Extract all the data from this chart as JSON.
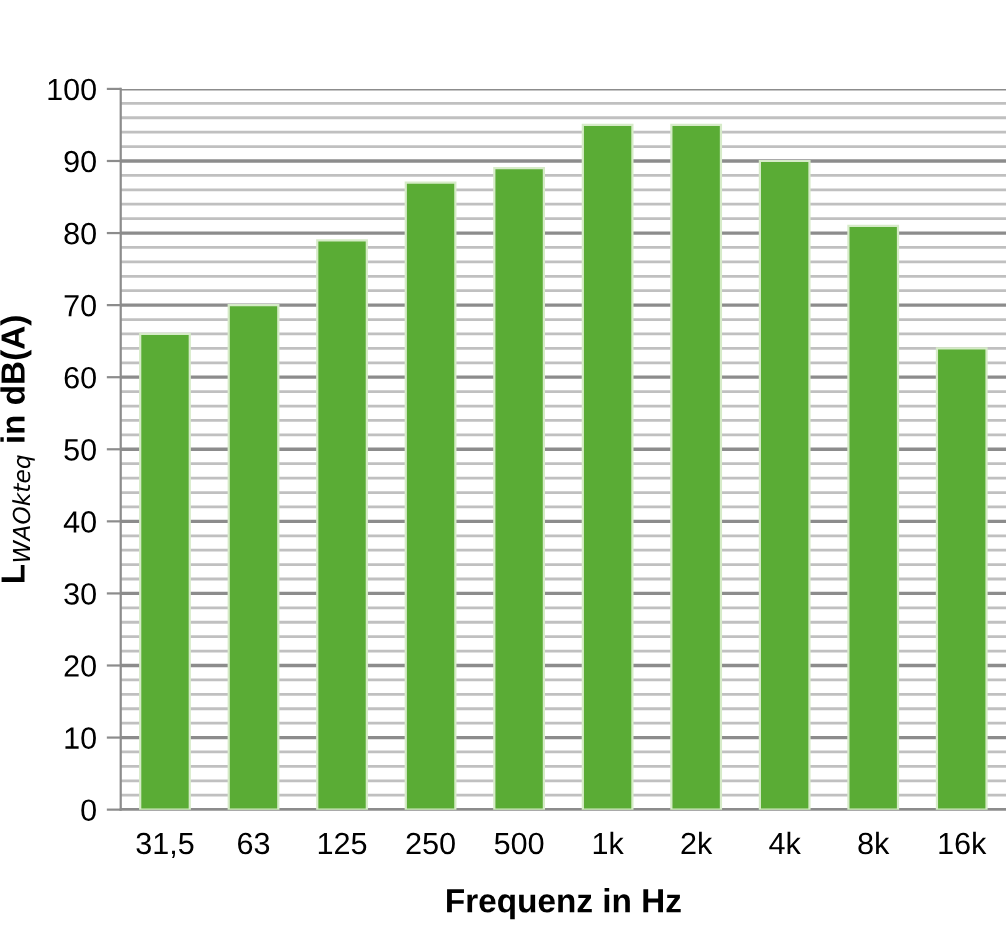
{
  "chart_data": {
    "type": "bar",
    "xlabel": "Frequenz in Hz",
    "ylabel": "L$_{WAOkteq}$ in dB(A)",
    "categories": [
      "31,5",
      "63",
      "125",
      "250",
      "500",
      "1k",
      "2k",
      "4k",
      "8k",
      "16k"
    ],
    "values": [
      66,
      70,
      79,
      87,
      89,
      95,
      95,
      90,
      81,
      64
    ],
    "color": "#5aac35",
    "ylim": [
      0,
      100
    ],
    "yticks": [
      0,
      10,
      20,
      30,
      40,
      50,
      60,
      70,
      80,
      90,
      100
    ],
    "grid": "y"
  }
}
